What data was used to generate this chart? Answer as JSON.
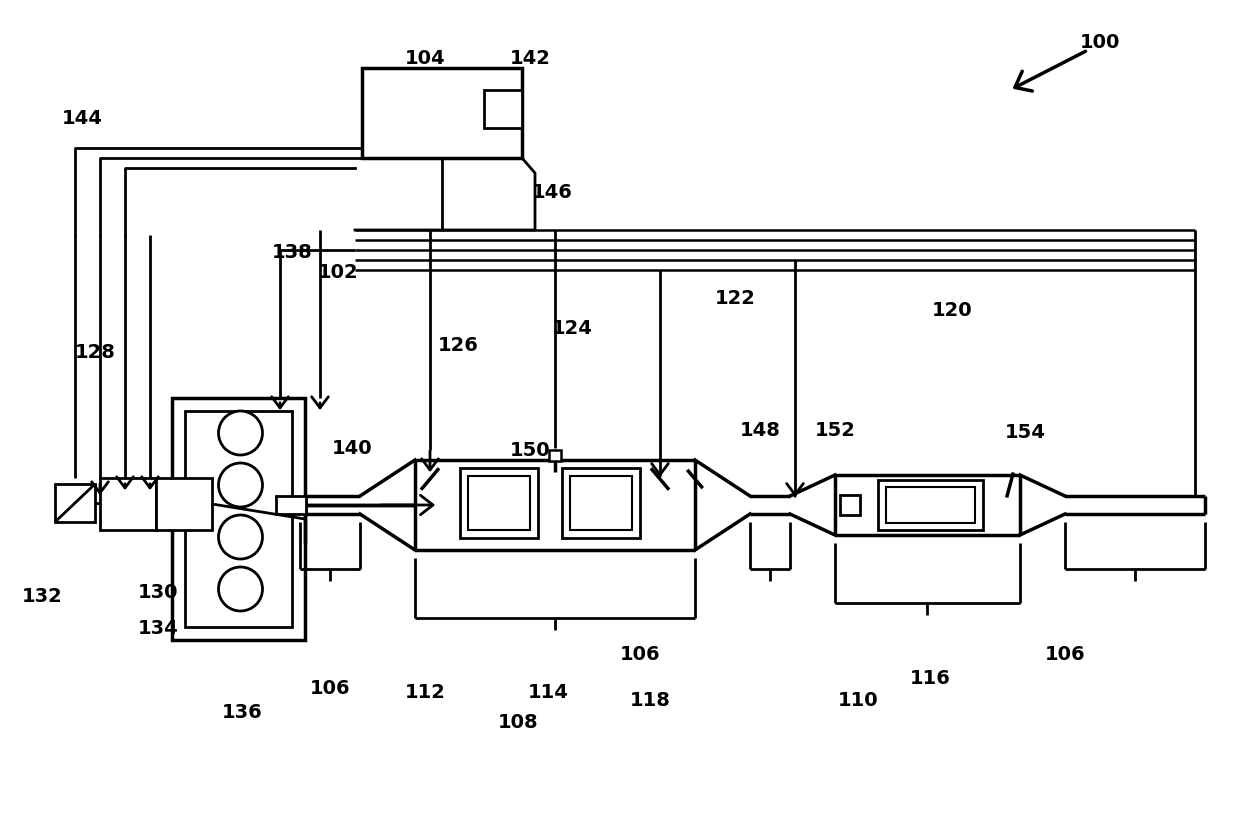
{
  "bg": "#ffffff",
  "lc": "#000000",
  "fig_w": 12.4,
  "fig_h": 8.24,
  "dpi": 100
}
